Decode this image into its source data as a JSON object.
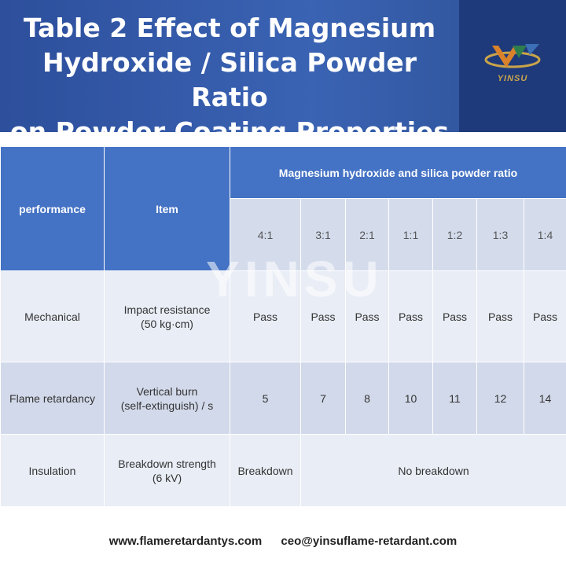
{
  "header": {
    "title_lines": [
      "Table 2  Effect of Magnesium",
      "Hydroxide / Silica Powder Ratio",
      "on Powder Coating Properties"
    ],
    "logo_text": "YINSU"
  },
  "colors": {
    "banner": "#3a63b3",
    "header_cell": "#4472c4",
    "row_light": "#e9edf5",
    "row_dark": "#d2d9ea",
    "logo_gold": "#c9a44a"
  },
  "table": {
    "col_performance": "performance",
    "col_item": "Item",
    "group_header": "Magnesium hydroxide and silica powder ratio",
    "ratios": [
      "4:1",
      "3:1",
      "2:1",
      "1:1",
      "1:2",
      "1:3",
      "1:4"
    ],
    "rows": [
      {
        "performance": "Mechanical",
        "item_lines": [
          "Impact resistance",
          "(50 kg·cm)"
        ],
        "values": [
          "Pass",
          "Pass",
          "Pass",
          "Pass",
          "Pass",
          "Pass",
          "Pass"
        ]
      },
      {
        "performance": "Flame retardancy",
        "item_lines": [
          "Vertical burn",
          "(self-extinguish) / s"
        ],
        "values": [
          "5",
          "7",
          "8",
          "10",
          "11",
          "12",
          "14"
        ]
      },
      {
        "performance": "Insulation",
        "item_lines": [
          "Breakdown strength",
          "(6 kV)"
        ],
        "first_value": "Breakdown",
        "merged_value": "No breakdown"
      }
    ]
  },
  "watermark": "YINSU",
  "footer": {
    "website": "www.flameretardantys.com",
    "email": "ceo@yinsuflame-retardant.com"
  }
}
